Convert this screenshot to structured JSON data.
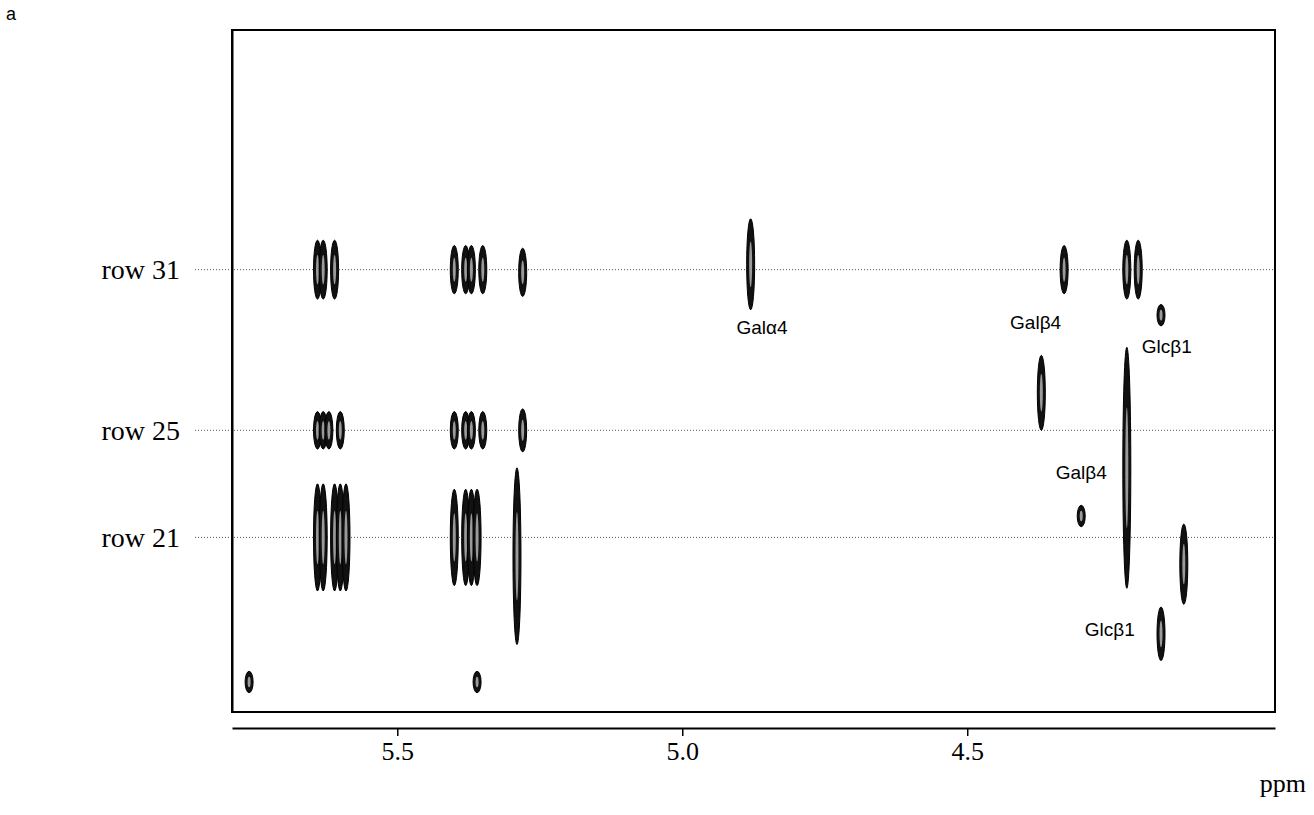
{
  "chart_data": {
    "type": "contour",
    "panel": "a",
    "x_label": "ppm",
    "xlim": [
      5.79,
      3.96
    ],
    "xticks": [
      5.5,
      {
        "value": 5,
        "label": "5.0"
      },
      4.5
    ],
    "ylim": [
      14.48,
      39.95
    ],
    "yticks": [
      {
        "value": 31,
        "label": "row 31"
      },
      {
        "value": 25,
        "label": "row 25"
      },
      {
        "value": 21,
        "label": "row 21"
      }
    ],
    "grid": true,
    "peaks": {
      "x": [
        5.64,
        5.63,
        5.61,
        5.4,
        5.38,
        5.37,
        5.35,
        5.28,
        4.88,
        4.33,
        4.22,
        4.2,
        5.64,
        5.63,
        5.62,
        5.6,
        5.4,
        5.38,
        5.37,
        5.35,
        5.28,
        4.37,
        4.22,
        4.16,
        4.3,
        4.16,
        4.12,
        5.64,
        5.63,
        5.61,
        5.6,
        5.59,
        5.4,
        5.38,
        5.37,
        5.36,
        5.29,
        5.76,
        5.36
      ],
      "y": [
        31,
        31,
        31,
        31,
        31,
        31,
        31,
        30.9,
        31.2,
        31,
        31,
        31,
        25,
        25,
        25,
        25,
        25,
        25,
        25,
        25,
        25,
        26.4,
        23.6,
        29.3,
        21.8,
        17.4,
        20,
        21,
        21,
        21,
        21,
        21,
        21,
        21,
        21,
        21,
        20.3,
        15.6,
        15.6
      ],
      "span": [
        1.1,
        1.1,
        1.1,
        0.9,
        0.9,
        0.9,
        0.9,
        0.9,
        1.7,
        0.9,
        1.1,
        1.1,
        0.7,
        0.7,
        0.7,
        0.7,
        0.7,
        0.7,
        0.7,
        0.7,
        0.8,
        1.4,
        4.5,
        0.4,
        0.4,
        1.0,
        1.5,
        2.0,
        2.0,
        2.0,
        2.0,
        2.0,
        1.8,
        1.8,
        1.8,
        1.8,
        3.3,
        0.4,
        0.4
      ]
    },
    "annotations": [
      {
        "text": "Galα4",
        "x": 4.86,
        "y": 28.6
      },
      {
        "text": "Galβ4",
        "x": 4.38,
        "y": 28.8
      },
      {
        "text": "Glcβ1",
        "x": 4.15,
        "y": 27.9
      },
      {
        "text": "Galβ4",
        "x": 4.3,
        "y": 23.2
      },
      {
        "text": "Glcβ1",
        "x": 4.25,
        "y": 17.3
      }
    ]
  }
}
